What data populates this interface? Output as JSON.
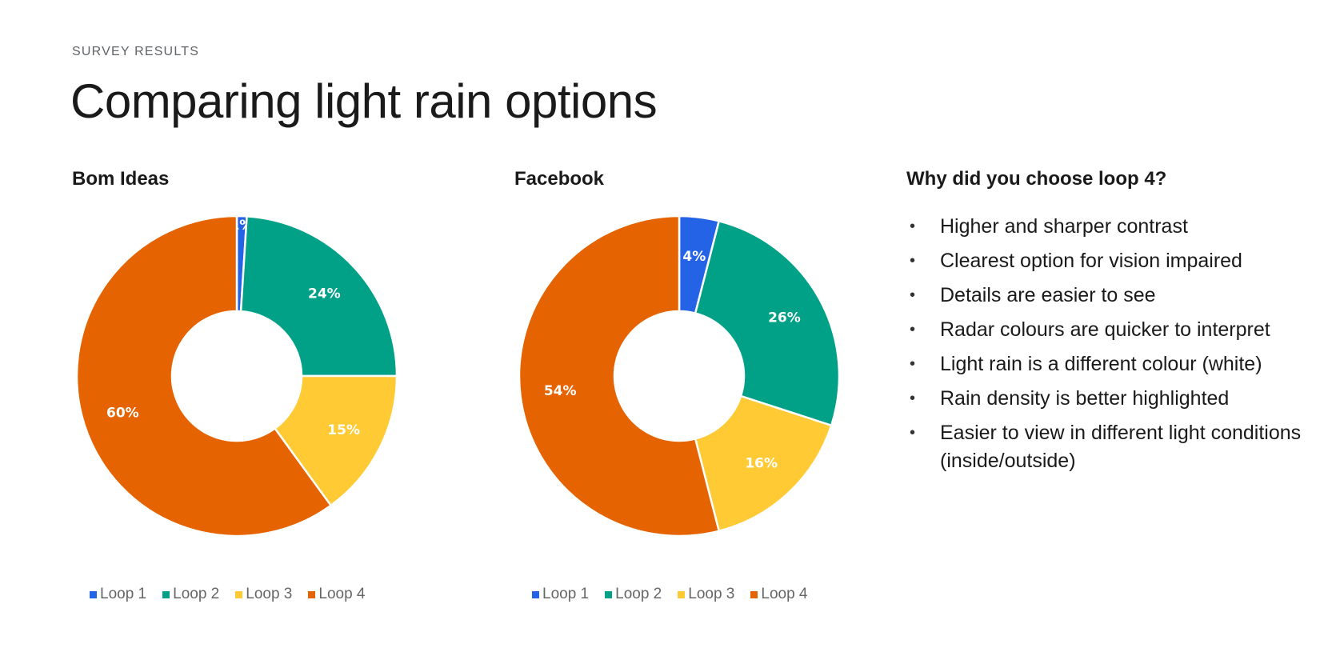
{
  "header": {
    "kicker": "SURVEY RESULTS",
    "title": "Comparing light rain options"
  },
  "colors": {
    "loop1": "#2563e6",
    "loop2": "#00a187",
    "loop3": "#ffca33",
    "loop4": "#e56300"
  },
  "chart_data": [
    {
      "type": "pie",
      "title": "Bom Ideas",
      "categories": [
        "Loop 1",
        "Loop 2",
        "Loop 3",
        "Loop 4"
      ],
      "values": [
        1,
        24,
        15,
        60
      ],
      "labels": [
        "1%",
        "24%",
        "15%",
        "60%"
      ],
      "legend": "bottom"
    },
    {
      "type": "pie",
      "title": "Facebook",
      "categories": [
        "Loop 1",
        "Loop 2",
        "Loop 3",
        "Loop 4"
      ],
      "values": [
        4,
        26,
        16,
        54
      ],
      "labels": [
        "4%",
        "26%",
        "16%",
        "54%"
      ],
      "legend": "bottom"
    }
  ],
  "reasons": {
    "title": "Why did you choose loop 4?",
    "bullet": "•",
    "items": [
      "Higher and sharper contrast",
      "Clearest option for vision impaired",
      "Details are easier to see",
      "Radar colours are quicker to interpret",
      "Light rain is a different colour (white)",
      "Rain density is better highlighted",
      "Easier to view in different light conditions (inside/outside)"
    ]
  }
}
